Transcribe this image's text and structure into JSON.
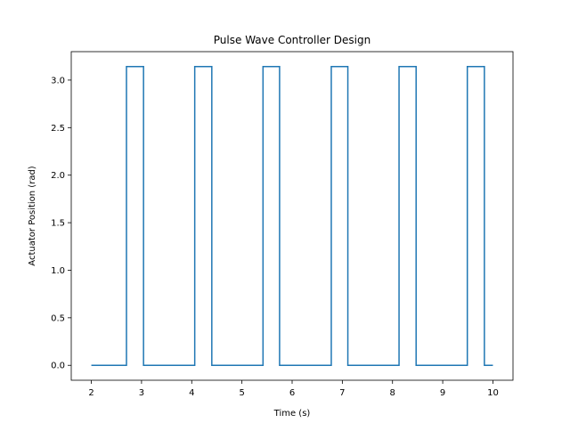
{
  "chart_data": {
    "type": "line",
    "title": "Pulse Wave Controller Design",
    "xlabel": "Time (s)",
    "ylabel": "Actuator Position (rad)",
    "xlim": [
      1.6,
      10.4
    ],
    "ylim": [
      -0.157,
      3.299
    ],
    "xticks": [
      2,
      3,
      4,
      5,
      6,
      7,
      8,
      9,
      10
    ],
    "xtick_labels": [
      "2",
      "3",
      "4",
      "5",
      "6",
      "7",
      "8",
      "9",
      "10"
    ],
    "yticks": [
      0.0,
      0.5,
      1.0,
      1.5,
      2.0,
      2.5,
      3.0
    ],
    "ytick_labels": [
      "0.0",
      "0.5",
      "1.0",
      "1.5",
      "2.0",
      "2.5",
      "3.0"
    ],
    "grid": false,
    "legend": "none",
    "colors": {
      "line": "#1f77b4"
    },
    "series": [
      {
        "x": [
          2.0,
          2.7,
          2.7,
          3.04,
          3.04,
          4.06,
          4.06,
          4.4,
          4.4,
          5.42,
          5.42,
          5.75,
          5.75,
          6.78,
          6.78,
          7.11,
          7.11,
          8.13,
          8.13,
          8.47,
          8.47,
          9.49,
          9.49,
          9.83,
          9.83,
          10.0
        ],
        "y": [
          0.0,
          0.0,
          3.14159,
          3.14159,
          0.0,
          0.0,
          3.14159,
          3.14159,
          0.0,
          0.0,
          3.14159,
          3.14159,
          0.0,
          0.0,
          3.14159,
          3.14159,
          0.0,
          0.0,
          3.14159,
          3.14159,
          0.0,
          0.0,
          3.14159,
          3.14159,
          0.0,
          0.0
        ]
      }
    ]
  }
}
